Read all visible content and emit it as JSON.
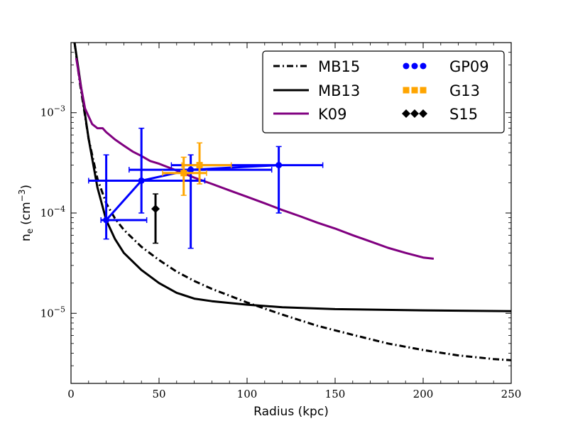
{
  "chart_data": {
    "type": "scatter",
    "xlabel": "Radius (kpc)",
    "ylabel_base": "n",
    "ylabel_sub": "e",
    "ylabel_unit": "(cm",
    "ylabel_exp": "−3",
    "ylabel_close": ")",
    "xlim": [
      0,
      250
    ],
    "ylim": [
      2e-06,
      0.005
    ],
    "yscale": "log",
    "x_ticks": [
      0,
      50,
      100,
      150,
      200,
      250
    ],
    "x_tick_labels": [
      "0",
      "50",
      "100",
      "150",
      "200",
      "250"
    ],
    "y_ticks": [
      1e-05,
      0.0001,
      0.001
    ],
    "y_tick_labels": [
      {
        "base": "10",
        "exp": "−5"
      },
      {
        "base": "10",
        "exp": "−4"
      },
      {
        "base": "10",
        "exp": "−3"
      }
    ],
    "grid": false,
    "legend_position": "top-right",
    "series": [
      {
        "name": "MB15",
        "color": "#000000",
        "style": "dashdot",
        "x": [
          2,
          5,
          10,
          15,
          20,
          25,
          30,
          40,
          50,
          60,
          70,
          80,
          90,
          100,
          120,
          140,
          160,
          180,
          200,
          220,
          240,
          250
        ],
        "y": [
          0.005,
          0.002,
          0.00055,
          0.00022,
          0.000125,
          8.8e-05,
          6.8e-05,
          4.6e-05,
          3.4e-05,
          2.6e-05,
          2.1e-05,
          1.75e-05,
          1.5e-05,
          1.28e-05,
          9.7e-06,
          7.5e-06,
          6.1e-06,
          5e-06,
          4.3e-06,
          3.8e-06,
          3.5e-06,
          3.4e-06
        ]
      },
      {
        "name": "MB13",
        "color": "#000000",
        "style": "solid",
        "x": [
          2,
          5,
          10,
          15,
          20,
          25,
          30,
          40,
          50,
          60,
          70,
          80,
          100,
          120,
          150,
          200,
          250
        ],
        "y": [
          0.005,
          0.0022,
          0.00055,
          0.00018,
          8.5e-05,
          5.5e-05,
          4e-05,
          2.7e-05,
          2e-05,
          1.6e-05,
          1.4e-05,
          1.32e-05,
          1.22e-05,
          1.15e-05,
          1.1e-05,
          1.07e-05,
          1.05e-05
        ]
      },
      {
        "name": "K09",
        "color": "#800080",
        "style": "solid",
        "x": [
          3,
          5,
          8,
          12,
          15,
          18,
          20,
          25,
          30,
          35,
          40,
          45,
          50,
          60,
          70,
          80,
          90,
          100,
          110,
          120,
          130,
          140,
          150,
          160,
          170,
          180,
          190,
          200,
          206
        ],
        "y": [
          0.0035,
          0.0021,
          0.0011,
          0.00077,
          0.0007,
          0.0007,
          0.00064,
          0.00054,
          0.00047,
          0.00041,
          0.00037,
          0.00033,
          0.00031,
          0.000265,
          0.000225,
          0.000195,
          0.000168,
          0.000145,
          0.000125,
          0.000107,
          9.3e-05,
          8e-05,
          7e-05,
          6e-05,
          5.2e-05,
          4.5e-05,
          4e-05,
          3.6e-05,
          3.5e-05
        ]
      },
      {
        "name": "GP09",
        "color": "#0000ff",
        "style": "points-connected",
        "points": [
          {
            "x": 20,
            "y": 8.5e-05,
            "xerr": [
              17,
              43
            ],
            "yerr": [
              5.5e-05,
              0.00038
            ]
          },
          {
            "x": 40,
            "y": 0.00021,
            "xerr": [
              10,
              76
            ],
            "yerr": [
              0.0001,
              0.0007
            ]
          },
          {
            "x": 68,
            "y": 0.00027,
            "xerr": [
              33,
              114
            ],
            "yerr": [
              4.45e-05,
              0.00038
            ]
          },
          {
            "x": 118,
            "y": 0.0003,
            "xerr": [
              57,
              143
            ],
            "yerr": [
              0.0001,
              0.00046
            ]
          }
        ]
      },
      {
        "name": "G13",
        "color": "#ffa500",
        "style": "points",
        "points": [
          {
            "x": 64,
            "y": 0.00025,
            "xerr": [
              52,
              77
            ],
            "yerr": [
              0.00015,
              0.00036
            ]
          },
          {
            "x": 73,
            "y": 0.0003,
            "xerr": [
              63,
              91
            ],
            "yerr": [
              0.000195,
              0.0005
            ]
          }
        ]
      },
      {
        "name": "S15",
        "color": "#000000",
        "style": "points",
        "points": [
          {
            "x": 48,
            "y": 0.00011,
            "xerr": [
              48,
              48
            ],
            "yerr": [
              5e-05,
              0.000155
            ]
          }
        ]
      }
    ]
  }
}
